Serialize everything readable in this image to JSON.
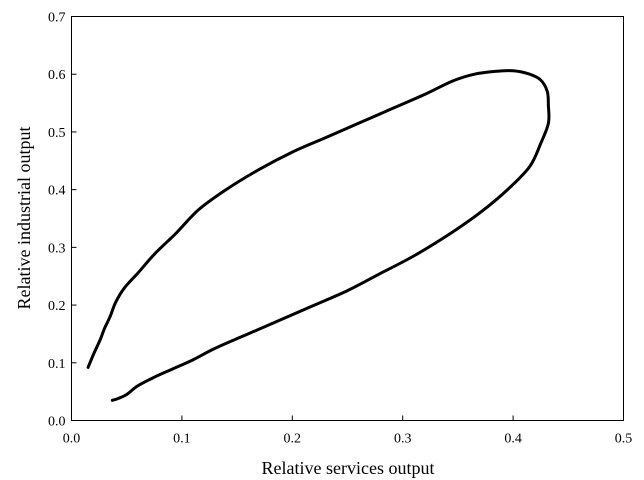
{
  "chart_data": {
    "type": "line",
    "title": "",
    "xlabel": "Relative services output",
    "ylabel": "Relative industrial output",
    "xlim": [
      0.0,
      0.5
    ],
    "ylim": [
      0.0,
      0.7
    ],
    "x_ticks": [
      "0.0",
      "0.1",
      "0.2",
      "0.3",
      "0.4",
      "0.5"
    ],
    "y_ticks": [
      "0.0",
      "0.1",
      "0.2",
      "0.3",
      "0.4",
      "0.5",
      "0.6",
      "0.7"
    ],
    "grid": false,
    "legend": "none",
    "series": [
      {
        "color": "#000000",
        "points": [
          [
            0.015,
            0.092
          ],
          [
            0.02,
            0.115
          ],
          [
            0.026,
            0.14
          ],
          [
            0.03,
            0.16
          ],
          [
            0.035,
            0.18
          ],
          [
            0.04,
            0.205
          ],
          [
            0.048,
            0.23
          ],
          [
            0.06,
            0.255
          ],
          [
            0.075,
            0.288
          ],
          [
            0.095,
            0.325
          ],
          [
            0.115,
            0.365
          ],
          [
            0.14,
            0.4
          ],
          [
            0.17,
            0.435
          ],
          [
            0.2,
            0.465
          ],
          [
            0.23,
            0.49
          ],
          [
            0.26,
            0.515
          ],
          [
            0.29,
            0.54
          ],
          [
            0.32,
            0.565
          ],
          [
            0.345,
            0.588
          ],
          [
            0.365,
            0.6
          ],
          [
            0.385,
            0.605
          ],
          [
            0.4,
            0.606
          ],
          [
            0.415,
            0.6
          ],
          [
            0.425,
            0.59
          ],
          [
            0.431,
            0.57
          ],
          [
            0.432,
            0.545
          ],
          [
            0.432,
            0.515
          ],
          [
            0.425,
            0.48
          ],
          [
            0.415,
            0.44
          ],
          [
            0.395,
            0.4
          ],
          [
            0.37,
            0.36
          ],
          [
            0.34,
            0.32
          ],
          [
            0.31,
            0.285
          ],
          [
            0.28,
            0.255
          ],
          [
            0.25,
            0.225
          ],
          [
            0.22,
            0.2
          ],
          [
            0.19,
            0.175
          ],
          [
            0.16,
            0.15
          ],
          [
            0.13,
            0.125
          ],
          [
            0.11,
            0.105
          ],
          [
            0.09,
            0.088
          ],
          [
            0.075,
            0.075
          ],
          [
            0.06,
            0.06
          ],
          [
            0.05,
            0.045
          ],
          [
            0.042,
            0.038
          ],
          [
            0.037,
            0.035
          ]
        ]
      }
    ]
  }
}
